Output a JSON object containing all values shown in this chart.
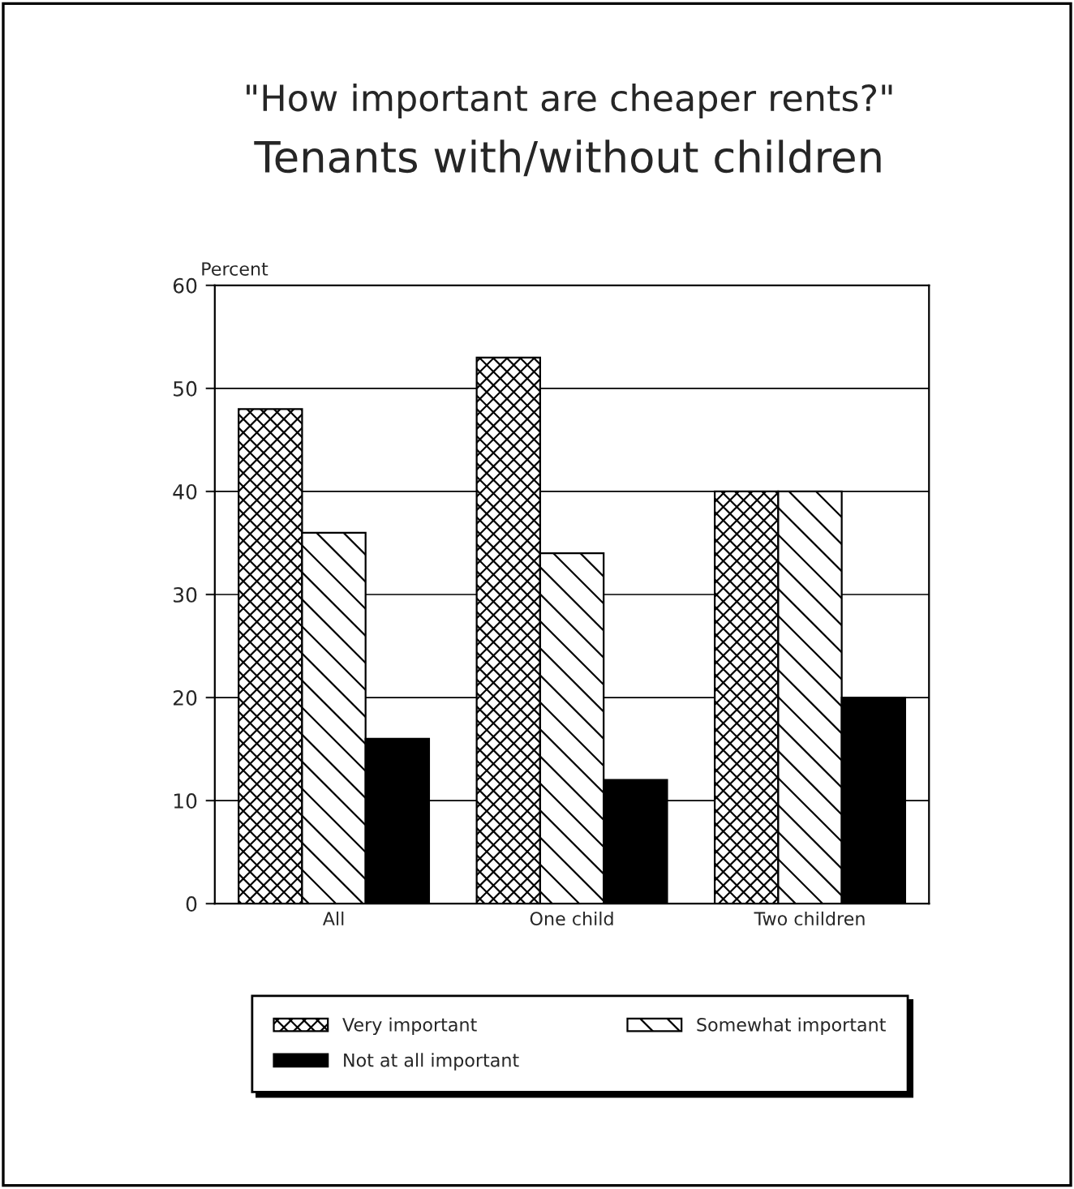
{
  "chart_data": {
    "type": "bar",
    "title": "\"How important are cheaper rents?\"",
    "subtitle": "Tenants with/without children",
    "ylabel": "Percent",
    "categories": [
      "All",
      "One child",
      "Two children"
    ],
    "series": [
      {
        "name": "Very important",
        "color": "#000000",
        "values": [
          48,
          53,
          40
        ]
      },
      {
        "name": "Somewhat important",
        "color": "#000000",
        "values": [
          36,
          34,
          40
        ]
      },
      {
        "name": "Not at all important",
        "color": "#000000",
        "values": [
          16,
          12,
          20
        ]
      }
    ],
    "ylim": [
      0,
      60
    ],
    "yticks": [
      0,
      10,
      20,
      30,
      40,
      50,
      60
    ],
    "grid": "y",
    "legend": "bottom"
  }
}
